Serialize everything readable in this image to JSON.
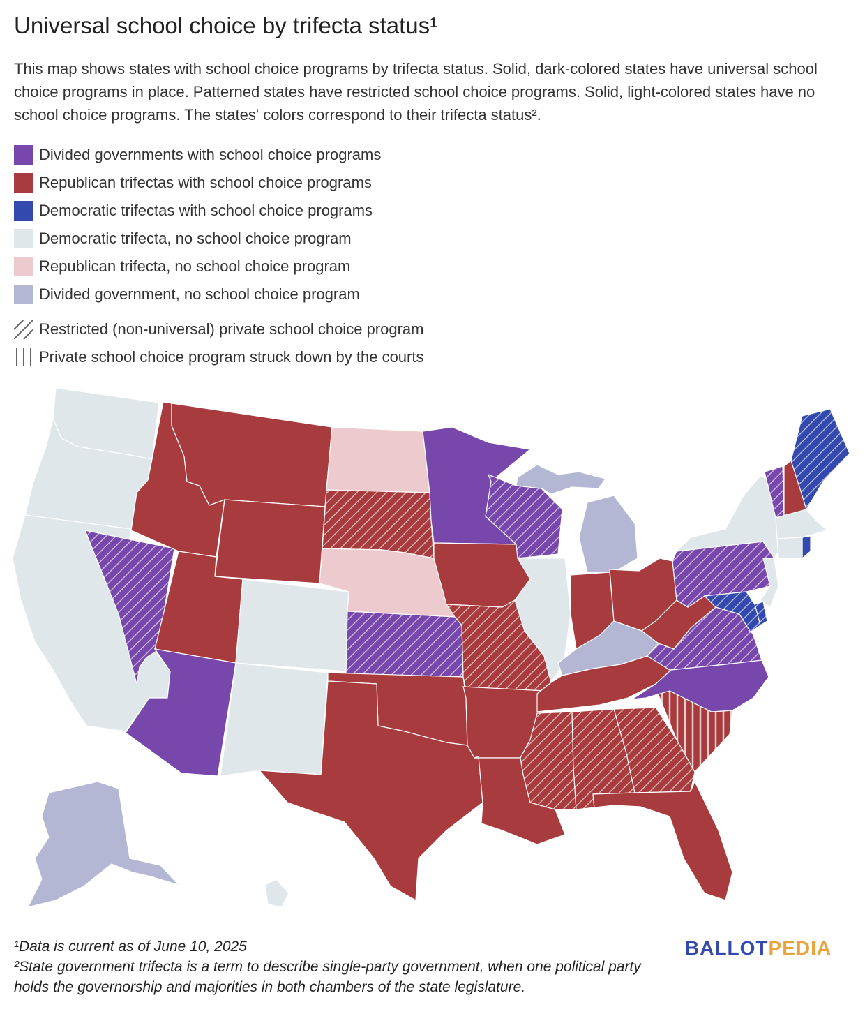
{
  "title": "Universal school choice by trifecta status¹",
  "description": "This map shows states with school choice programs by trifecta status. Solid, dark-colored states have universal school choice programs in place. Patterned states have restricted school choice programs. Solid, light-colored states have no school choice programs. The states' colors correspond to their trifecta status².",
  "legend": [
    {
      "label": "Divided governments with school choice programs",
      "color": "#7847ab"
    },
    {
      "label": "Republican trifectas with school choice programs",
      "color": "#a73b3d"
    },
    {
      "label": "Democratic trifectas with school choice programs",
      "color": "#3349ad"
    },
    {
      "label": "Democratic trifecta, no school choice program",
      "color": "#dfe7ea"
    },
    {
      "label": "Republican trifecta, no school choice program",
      "color": "#eccacd"
    },
    {
      "label": "Divided government, no school choice program",
      "color": "#b3b7d3"
    }
  ],
  "pattern_legend": [
    {
      "label": "Restricted (non-universal) private school choice program",
      "icon": "diagonal-hatch-icon"
    },
    {
      "label": "Private school choice program struck down by the courts",
      "icon": "vertical-hatch-icon"
    }
  ],
  "footnotes": [
    "¹Data is current as of June 10, 2025",
    "²State government trifecta is a term to describe single-party government, when one political party holds the governorship and majorities in both chambers of the state legislature."
  ],
  "logo": {
    "part1": "BALLOT",
    "part2": "PEDIA",
    "color1": "#3349ad",
    "color2": "#e8a33d"
  },
  "colors": {
    "divided_choice": "#7847ab",
    "rep_choice": "#a73b3d",
    "dem_choice": "#3349ad",
    "dem_none": "#dfe7ea",
    "rep_none": "#eccacd",
    "div_none": "#b3b7d3"
  },
  "states": [
    {
      "name": "Washington",
      "category": "dem_none",
      "pattern": "none"
    },
    {
      "name": "Oregon",
      "category": "dem_none",
      "pattern": "none"
    },
    {
      "name": "California",
      "category": "dem_none",
      "pattern": "none"
    },
    {
      "name": "Nevada",
      "category": "divided_choice",
      "pattern": "restricted"
    },
    {
      "name": "Idaho",
      "category": "rep_choice",
      "pattern": "none"
    },
    {
      "name": "Montana",
      "category": "rep_choice",
      "pattern": "none"
    },
    {
      "name": "Wyoming",
      "category": "rep_choice",
      "pattern": "none"
    },
    {
      "name": "Utah",
      "category": "rep_choice",
      "pattern": "none"
    },
    {
      "name": "Arizona",
      "category": "divided_choice",
      "pattern": "none"
    },
    {
      "name": "Colorado",
      "category": "dem_none",
      "pattern": "none"
    },
    {
      "name": "New Mexico",
      "category": "dem_none",
      "pattern": "none"
    },
    {
      "name": "North Dakota",
      "category": "rep_none",
      "pattern": "none"
    },
    {
      "name": "South Dakota",
      "category": "rep_choice",
      "pattern": "restricted"
    },
    {
      "name": "Nebraska",
      "category": "rep_none",
      "pattern": "none"
    },
    {
      "name": "Kansas",
      "category": "divided_choice",
      "pattern": "restricted"
    },
    {
      "name": "Oklahoma",
      "category": "rep_choice",
      "pattern": "none"
    },
    {
      "name": "Texas",
      "category": "rep_choice",
      "pattern": "none"
    },
    {
      "name": "Minnesota",
      "category": "divided_choice",
      "pattern": "none"
    },
    {
      "name": "Iowa",
      "category": "rep_choice",
      "pattern": "none"
    },
    {
      "name": "Missouri",
      "category": "rep_choice",
      "pattern": "restricted"
    },
    {
      "name": "Arkansas",
      "category": "rep_choice",
      "pattern": "none"
    },
    {
      "name": "Louisiana",
      "category": "rep_choice",
      "pattern": "none"
    },
    {
      "name": "Wisconsin",
      "category": "divided_choice",
      "pattern": "restricted"
    },
    {
      "name": "Illinois",
      "category": "dem_none",
      "pattern": "none"
    },
    {
      "name": "Michigan",
      "category": "div_none",
      "pattern": "none"
    },
    {
      "name": "Indiana",
      "category": "rep_choice",
      "pattern": "none"
    },
    {
      "name": "Ohio",
      "category": "rep_choice",
      "pattern": "none"
    },
    {
      "name": "Kentucky",
      "category": "div_none",
      "pattern": "none"
    },
    {
      "name": "Tennessee",
      "category": "rep_choice",
      "pattern": "none"
    },
    {
      "name": "Mississippi",
      "category": "rep_choice",
      "pattern": "restricted"
    },
    {
      "name": "Alabama",
      "category": "rep_choice",
      "pattern": "restricted"
    },
    {
      "name": "Georgia",
      "category": "rep_choice",
      "pattern": "restricted"
    },
    {
      "name": "Florida",
      "category": "rep_choice",
      "pattern": "none"
    },
    {
      "name": "South Carolina",
      "category": "rep_choice",
      "pattern": "struck_down"
    },
    {
      "name": "North Carolina",
      "category": "divided_choice",
      "pattern": "none"
    },
    {
      "name": "Virginia",
      "category": "divided_choice",
      "pattern": "restricted"
    },
    {
      "name": "West Virginia",
      "category": "rep_choice",
      "pattern": "none"
    },
    {
      "name": "Pennsylvania",
      "category": "divided_choice",
      "pattern": "restricted"
    },
    {
      "name": "New York",
      "category": "dem_none",
      "pattern": "none"
    },
    {
      "name": "Vermont",
      "category": "divided_choice",
      "pattern": "restricted"
    },
    {
      "name": "New Hampshire",
      "category": "rep_choice",
      "pattern": "none"
    },
    {
      "name": "Maine",
      "category": "dem_choice",
      "pattern": "restricted"
    },
    {
      "name": "Massachusetts",
      "category": "dem_none",
      "pattern": "none"
    },
    {
      "name": "Rhode Island",
      "category": "dem_choice",
      "pattern": "none"
    },
    {
      "name": "Connecticut",
      "category": "dem_none",
      "pattern": "none"
    },
    {
      "name": "New Jersey",
      "category": "dem_none",
      "pattern": "none"
    },
    {
      "name": "Delaware",
      "category": "dem_choice",
      "pattern": "restricted"
    },
    {
      "name": "Maryland",
      "category": "dem_choice",
      "pattern": "restricted"
    },
    {
      "name": "Alaska",
      "category": "div_none",
      "pattern": "none"
    },
    {
      "name": "Hawaii",
      "category": "dem_none",
      "pattern": "none"
    }
  ]
}
